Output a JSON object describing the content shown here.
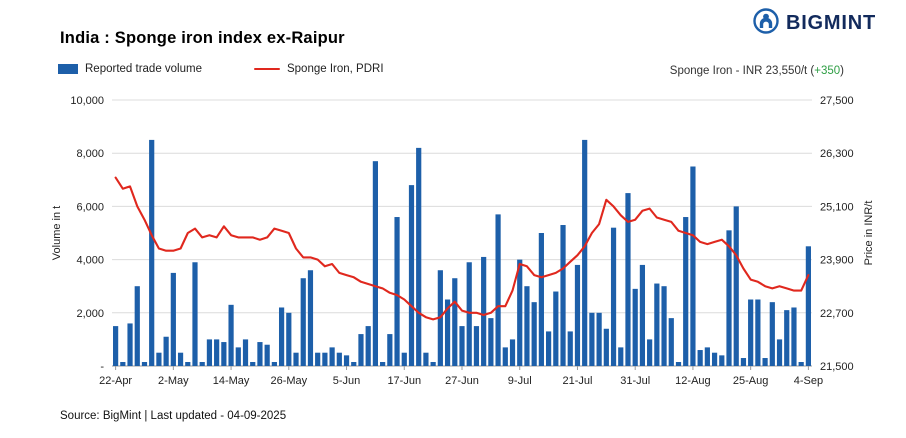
{
  "header": {
    "title": "India : Sponge iron index ex-Raipur"
  },
  "logo": {
    "text": "BIGMINT"
  },
  "legend": {
    "volume_label": "Reported trade volume",
    "price_label": "Sponge Iron, PDRI"
  },
  "readout": {
    "prefix": "Sponge Iron - INR 23,550/t (",
    "change": "+350",
    "suffix": ")"
  },
  "footer": {
    "source": "Source: BigMint | Last updated - 04-09-2025"
  },
  "colors": {
    "bar_blue": "#1d5fa9",
    "line_red": "#e0281e",
    "change_green": "#2e9e44",
    "logo_navy": "#122a5c",
    "grid_gray": "#dcdcdc",
    "axis_gray": "#9a9a9a"
  },
  "chart_data": {
    "type": "bar",
    "title": "India : Sponge iron index ex-Raipur",
    "x_tick_labels": [
      "22-Apr",
      "2-May",
      "14-May",
      "26-May",
      "5-Jun",
      "17-Jun",
      "27-Jun",
      "9-Jul",
      "21-Jul",
      "31-Jul",
      "12-Aug",
      "25-Aug",
      "4-Sep"
    ],
    "x_tick_indices": [
      0,
      8,
      16,
      24,
      32,
      40,
      48,
      56,
      64,
      72,
      80,
      88,
      96
    ],
    "grid": true,
    "legend_position": "top",
    "left_axis": {
      "label": "Volume in t",
      "min": 0,
      "max": 10000,
      "tick_labels": [
        "-",
        "2,000",
        "4,000",
        "6,000",
        "8,000",
        "10,000"
      ]
    },
    "right_axis": {
      "label": "Price in INR/t",
      "min": 21500,
      "max": 27500,
      "tick_labels": [
        "21,500",
        "22,700",
        "23,900",
        "25,100",
        "26,300",
        "27,500"
      ]
    },
    "series": [
      {
        "name": "Reported trade volume",
        "type": "bar",
        "axis": "left",
        "color": "#1d5fa9",
        "values": [
          1500,
          150,
          1600,
          3000,
          150,
          8500,
          500,
          1100,
          3500,
          500,
          150,
          3900,
          150,
          1000,
          1000,
          900,
          2300,
          700,
          1000,
          150,
          900,
          800,
          150,
          2200,
          2000,
          500,
          3300,
          3600,
          500,
          500,
          700,
          500,
          400,
          150,
          1200,
          1500,
          7700,
          150,
          1200,
          5600,
          500,
          6800,
          8200,
          500,
          150,
          3600,
          2500,
          3300,
          1500,
          3900,
          1500,
          4100,
          1800,
          5700,
          700,
          1000,
          4000,
          3000,
          2400,
          5000,
          1300,
          2800,
          5300,
          1300,
          3800,
          8500,
          2000,
          2000,
          1400,
          5200,
          700,
          6500,
          2900,
          3800,
          1000,
          3100,
          3000,
          1800,
          150,
          5600,
          7500,
          600,
          700,
          500,
          400,
          5100,
          6000,
          300,
          2500,
          2500,
          300,
          2400,
          1000,
          2100,
          2200,
          150,
          4500
        ]
      },
      {
        "name": "Sponge Iron, PDRI",
        "type": "line",
        "axis": "right",
        "color": "#e0281e",
        "values": [
          25750,
          25500,
          25550,
          25100,
          24800,
          24450,
          24150,
          24100,
          24100,
          24150,
          24500,
          24600,
          24400,
          24450,
          24400,
          24650,
          24450,
          24400,
          24400,
          24400,
          24350,
          24400,
          24600,
          24550,
          24500,
          24150,
          23950,
          23950,
          23900,
          23750,
          23800,
          23600,
          23550,
          23500,
          23400,
          23350,
          23300,
          23250,
          23150,
          23100,
          23000,
          22850,
          22700,
          22600,
          22550,
          22600,
          22800,
          22950,
          22750,
          22700,
          22700,
          22650,
          22700,
          22850,
          22850,
          23200,
          23800,
          23750,
          23550,
          23500,
          23550,
          23600,
          23700,
          23850,
          24000,
          24200,
          24500,
          24700,
          25250,
          25100,
          24900,
          24750,
          24800,
          25000,
          25050,
          24850,
          24800,
          24750,
          24550,
          24500,
          24450,
          24300,
          24250,
          24300,
          24350,
          24200,
          24000,
          23700,
          23450,
          23400,
          23300,
          23250,
          23300,
          23250,
          23200,
          23200,
          23550
        ]
      }
    ],
    "latest_price": 23550,
    "latest_change": 350
  }
}
